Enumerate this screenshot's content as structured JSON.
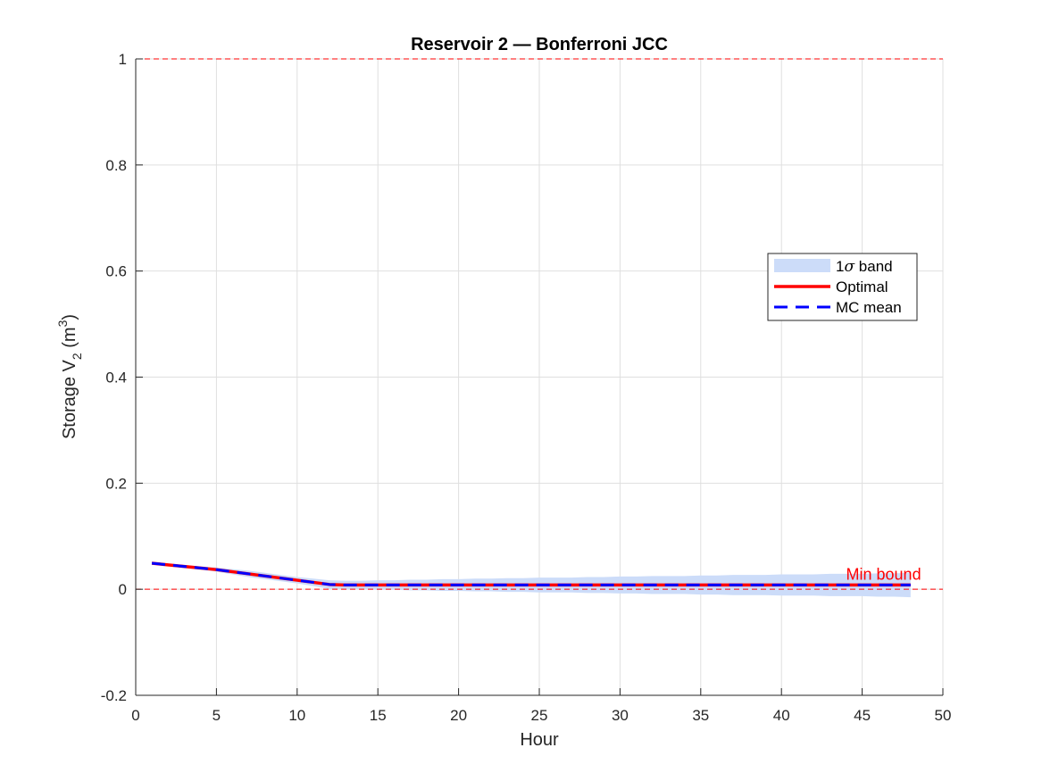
{
  "chart_data": {
    "type": "line",
    "title": "Reservoir 2 — Bonferroni JCC",
    "xlabel": "Hour",
    "ylabel": {
      "prefix": "Storage V",
      "sub": "2",
      "mid": " (m",
      "sup": "3",
      "suffix": ")"
    },
    "xlim": [
      0,
      50
    ],
    "ylim": [
      -0.2,
      1
    ],
    "xticks": [
      0,
      5,
      10,
      15,
      20,
      25,
      30,
      35,
      40,
      45,
      50
    ],
    "yticks": [
      -0.2,
      0,
      0.2,
      0.4,
      0.6,
      0.8,
      1
    ],
    "ytick_labels": [
      "-0.2",
      "0",
      "0.2",
      "0.4",
      "0.6",
      "0.8",
      "1"
    ],
    "grid": true,
    "legend_position": "right-upper",
    "legend": {
      "band": {
        "prefix": "1",
        "sigma": "σ",
        "suffix": " band"
      },
      "optimal": "Optimal",
      "mc_mean": "MC mean"
    },
    "bounds": [
      0,
      1
    ],
    "annotation": {
      "text": "Min bound",
      "x": 44,
      "y": 0.018
    },
    "x": [
      1,
      2,
      3,
      4,
      5,
      6,
      7,
      8,
      9,
      10,
      11,
      12,
      13,
      14,
      15,
      16,
      17,
      18,
      19,
      20,
      21,
      22,
      23,
      24,
      25,
      26,
      27,
      28,
      29,
      30,
      31,
      32,
      33,
      34,
      35,
      36,
      37,
      38,
      39,
      40,
      41,
      42,
      43,
      44,
      45,
      46,
      47,
      48
    ],
    "series": [
      {
        "name": "Optimal",
        "style": "solid",
        "color": "#ff0000",
        "values": [
          0.049,
          0.046,
          0.043,
          0.04,
          0.037,
          0.033,
          0.029,
          0.025,
          0.021,
          0.017,
          0.013,
          0.009,
          0.008,
          0.008,
          0.008,
          0.008,
          0.008,
          0.008,
          0.008,
          0.008,
          0.008,
          0.008,
          0.008,
          0.008,
          0.008,
          0.008,
          0.008,
          0.008,
          0.008,
          0.008,
          0.008,
          0.008,
          0.008,
          0.008,
          0.008,
          0.008,
          0.008,
          0.008,
          0.008,
          0.008,
          0.008,
          0.008,
          0.008,
          0.008,
          0.008,
          0.008,
          0.008,
          0.008
        ]
      },
      {
        "name": "MC mean",
        "style": "dashed",
        "color": "#0000ff",
        "values": [
          0.049,
          0.046,
          0.043,
          0.04,
          0.037,
          0.033,
          0.029,
          0.025,
          0.021,
          0.017,
          0.013,
          0.009,
          0.008,
          0.008,
          0.008,
          0.008,
          0.008,
          0.008,
          0.008,
          0.008,
          0.008,
          0.008,
          0.008,
          0.008,
          0.008,
          0.008,
          0.008,
          0.008,
          0.008,
          0.008,
          0.008,
          0.008,
          0.008,
          0.008,
          0.008,
          0.008,
          0.008,
          0.008,
          0.008,
          0.008,
          0.008,
          0.008,
          0.008,
          0.008,
          0.008,
          0.008,
          0.008,
          0.008
        ]
      }
    ],
    "band": {
      "color": "#ccdcf9",
      "upper": [
        0.05,
        0.048,
        0.046,
        0.043,
        0.041,
        0.038,
        0.035,
        0.031,
        0.027,
        0.023,
        0.02,
        0.017,
        0.016,
        0.016,
        0.017,
        0.017,
        0.018,
        0.018,
        0.019,
        0.019,
        0.02,
        0.02,
        0.021,
        0.021,
        0.022,
        0.022,
        0.022,
        0.023,
        0.023,
        0.024,
        0.024,
        0.025,
        0.025,
        0.025,
        0.026,
        0.026,
        0.027,
        0.027,
        0.027,
        0.028,
        0.028,
        0.028,
        0.029,
        0.029,
        0.029,
        0.03,
        0.03,
        0.031
      ],
      "lower": [
        0.048,
        0.044,
        0.04,
        0.037,
        0.033,
        0.028,
        0.023,
        0.019,
        0.015,
        0.011,
        0.006,
        0.001,
        0.0,
        0.0,
        -0.001,
        -0.001,
        -0.002,
        -0.002,
        -0.003,
        -0.003,
        -0.004,
        -0.004,
        -0.005,
        -0.005,
        -0.006,
        -0.006,
        -0.006,
        -0.007,
        -0.007,
        -0.008,
        -0.008,
        -0.009,
        -0.009,
        -0.009,
        -0.01,
        -0.01,
        -0.011,
        -0.011,
        -0.011,
        -0.012,
        -0.012,
        -0.012,
        -0.013,
        -0.013,
        -0.013,
        -0.014,
        -0.014,
        -0.015
      ]
    },
    "colors": {
      "bound": "#ff0000",
      "grid": "#dfdfdf",
      "axis": "#262626",
      "annotation": "#ff0000"
    }
  }
}
